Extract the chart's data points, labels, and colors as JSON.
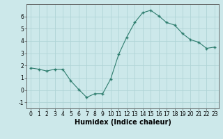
{
  "x": [
    0,
    1,
    2,
    3,
    4,
    5,
    6,
    7,
    8,
    9,
    10,
    11,
    12,
    13,
    14,
    15,
    16,
    17,
    18,
    19,
    20,
    21,
    22,
    23
  ],
  "y": [
    1.8,
    1.7,
    1.55,
    1.7,
    1.7,
    0.75,
    0.05,
    -0.6,
    -0.3,
    -0.3,
    0.9,
    2.9,
    4.3,
    5.5,
    6.3,
    6.5,
    6.05,
    5.5,
    5.3,
    4.6,
    4.1,
    3.9,
    3.4,
    3.5
  ],
  "line_color": "#2e7d6e",
  "marker": "+",
  "marker_size": 3,
  "marker_linewidth": 1.0,
  "line_width": 0.8,
  "bg_color": "#cce8ea",
  "grid_color": "#b0d4d6",
  "xlabel": "Humidex (Indice chaleur)",
  "xlabel_fontsize": 7,
  "xlim": [
    -0.5,
    23.5
  ],
  "ylim": [
    -1.5,
    7.0
  ],
  "yticks": [
    -1,
    0,
    1,
    2,
    3,
    4,
    5,
    6
  ],
  "xticks": [
    0,
    1,
    2,
    3,
    4,
    5,
    6,
    7,
    8,
    9,
    10,
    11,
    12,
    13,
    14,
    15,
    16,
    17,
    18,
    19,
    20,
    21,
    22,
    23
  ],
  "tick_fontsize": 5.5
}
